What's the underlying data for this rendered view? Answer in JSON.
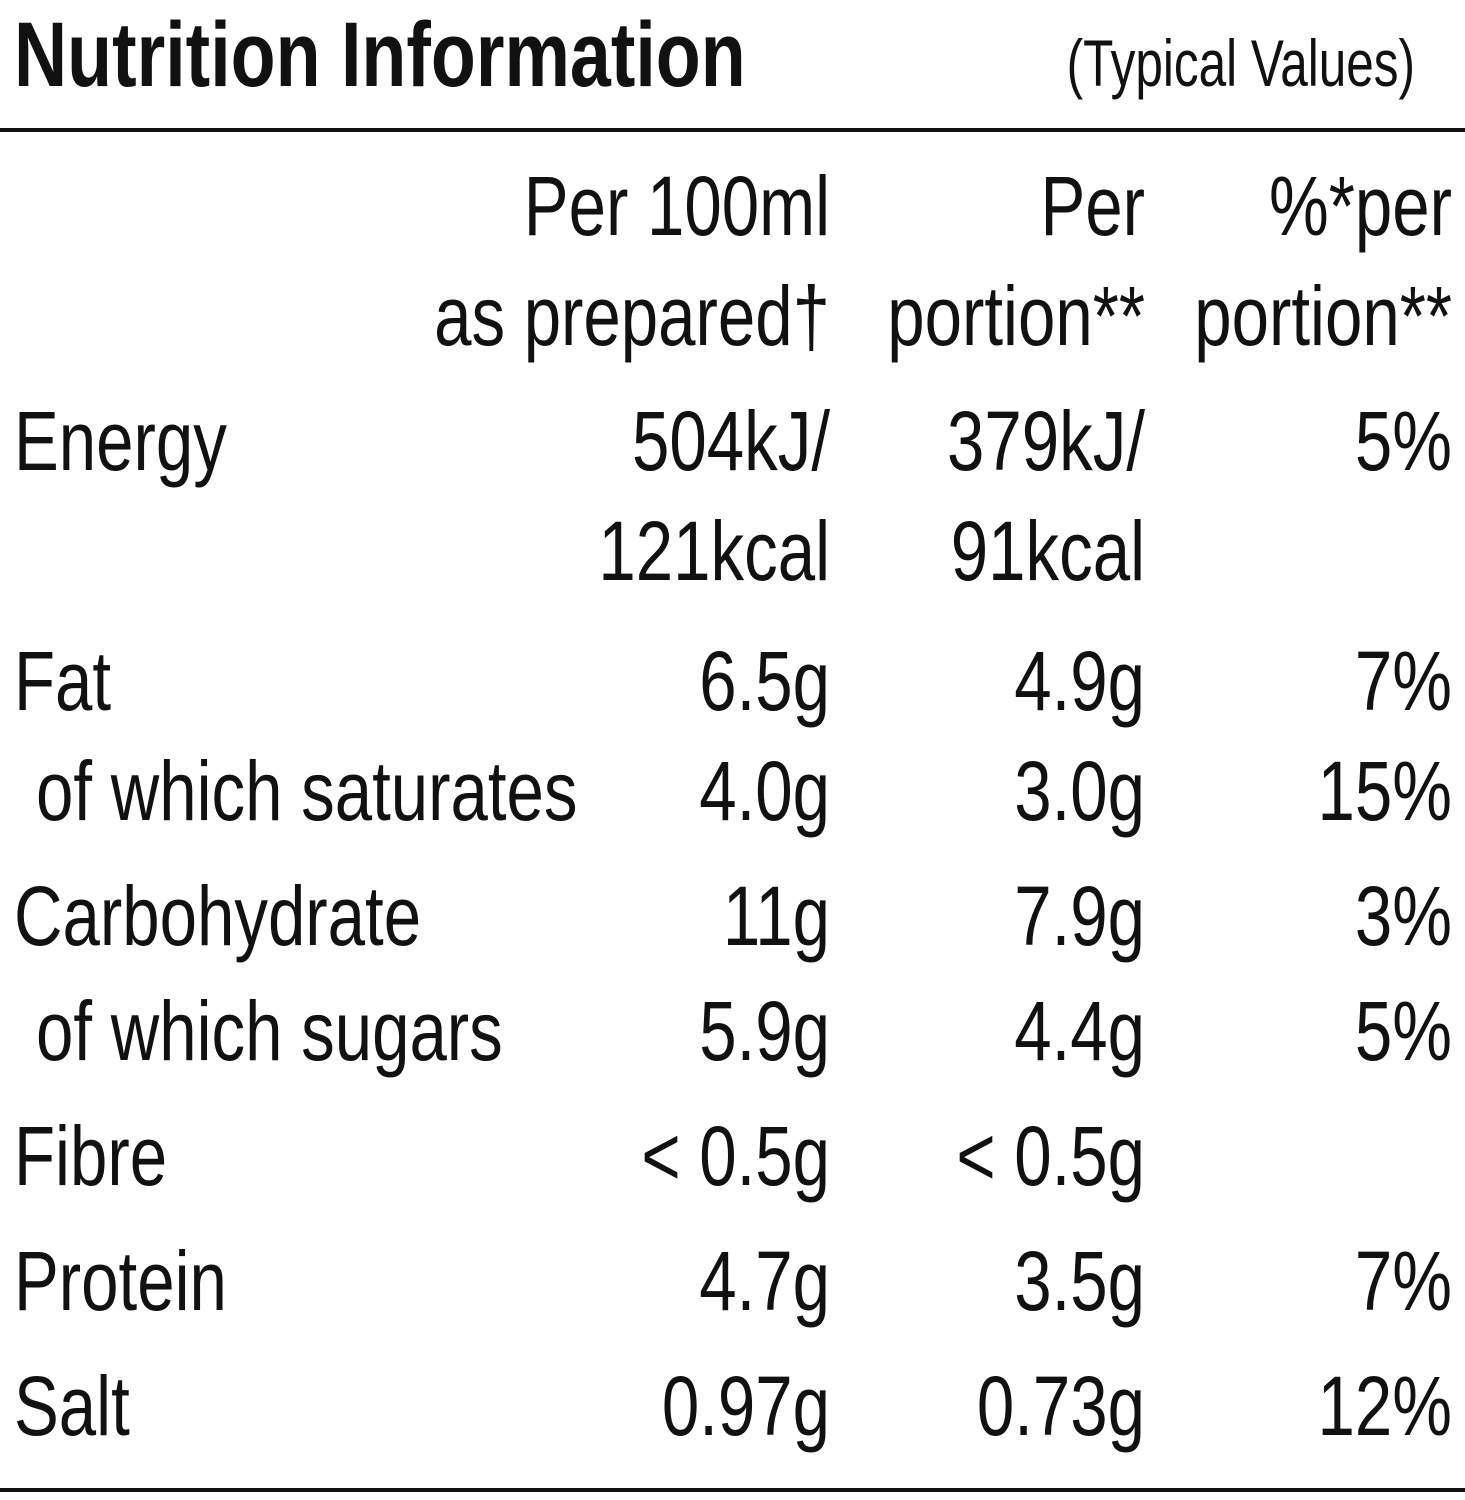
{
  "header": {
    "title": "Nutrition Information",
    "subtitle": "(Typical Values)"
  },
  "table": {
    "columns": [
      [
        "Per 100ml",
        "as prepared†"
      ],
      [
        "Per",
        "portion**"
      ],
      [
        "%*per",
        "portion**"
      ]
    ],
    "rows": [
      {
        "label": "Energy",
        "cells": [
          [
            "504kJ/",
            "121kcal"
          ],
          [
            "379kJ/",
            "91kcal"
          ],
          [
            "5%"
          ]
        ]
      },
      {
        "label": "Fat",
        "cells": [
          [
            "6.5g"
          ],
          [
            "4.9g"
          ],
          [
            "7%"
          ]
        ]
      },
      {
        "label": "of which saturates",
        "cells": [
          [
            "4.0g"
          ],
          [
            "3.0g"
          ],
          [
            "15%"
          ]
        ]
      },
      {
        "label": "Carbohydrate",
        "cells": [
          [
            "11g"
          ],
          [
            "7.9g"
          ],
          [
            "3%"
          ]
        ]
      },
      {
        "label": "of which sugars",
        "cells": [
          [
            "5.9g"
          ],
          [
            "4.4g"
          ],
          [
            "5%"
          ]
        ]
      },
      {
        "label": "Fibre",
        "cells": [
          [
            "< 0.5g"
          ],
          [
            "< 0.5g"
          ],
          []
        ]
      },
      {
        "label": "Protein",
        "cells": [
          [
            "4.7g"
          ],
          [
            "3.5g"
          ],
          [
            "7%"
          ]
        ]
      },
      {
        "label": "Salt",
        "cells": [
          [
            "0.97g"
          ],
          [
            "0.73g"
          ],
          [
            "12%"
          ]
        ]
      }
    ]
  }
}
